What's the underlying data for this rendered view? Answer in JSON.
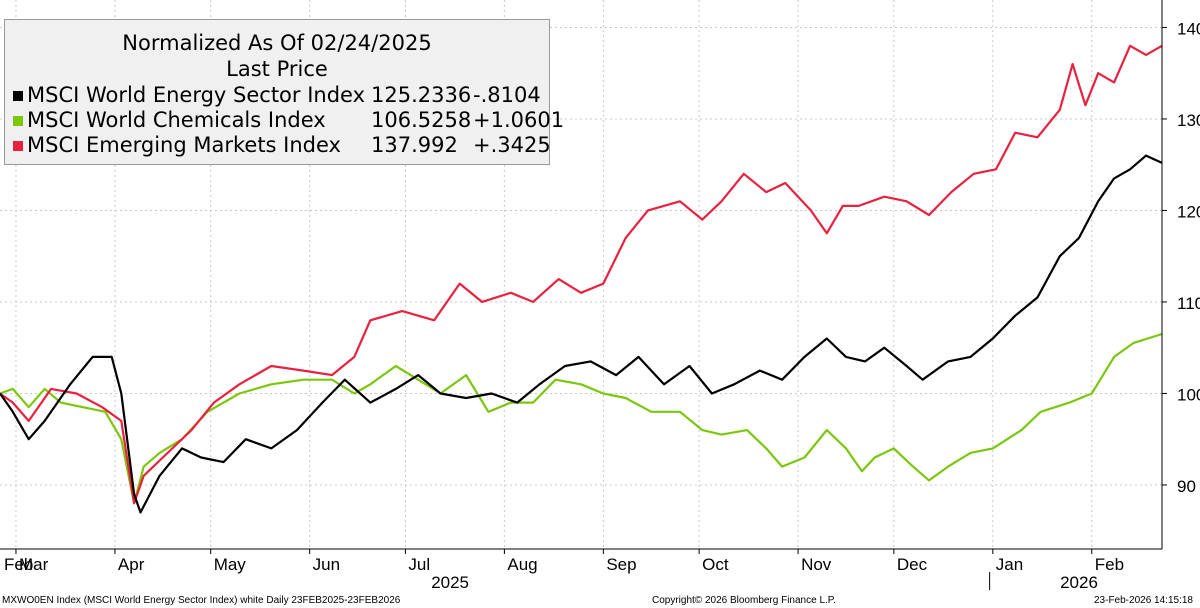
{
  "legend": {
    "header_line1": "Normalized As Of 02/24/2025",
    "header_line2": "Last Price",
    "entries": [
      {
        "name": "MSCI World Energy Sector Index",
        "last": "125.2336",
        "change": "-.8104",
        "color": "#000000"
      },
      {
        "name": "MSCI World Chemicals Index",
        "last": "106.5258",
        "change": "+1.0601",
        "color": "#7ac70c"
      },
      {
        "name": "MSCI Emerging Markets Index",
        "last": "137.992",
        "change": "+.3425",
        "color": "#e8213f"
      }
    ]
  },
  "footer": {
    "left": "MXWO0EN Index (MSCI World Energy Sector Index) white Daily 23FEB2025-23FEB2026",
    "center": "Copyright© 2026 Bloomberg Finance L.P.",
    "right": "23-Feb-2026 14:15:18"
  },
  "chart_data": {
    "type": "line",
    "ylim": [
      83,
      143
    ],
    "y_ticks": [
      90,
      100,
      110,
      120,
      130,
      140
    ],
    "x_start": "2025-02-24",
    "x_end": "2026-02-23",
    "month_ticks": [
      {
        "label": "Feb",
        "date": "2025-02-24"
      },
      {
        "label": "Mar",
        "date": "2025-03-01"
      },
      {
        "label": "Apr",
        "date": "2025-04-01"
      },
      {
        "label": "May",
        "date": "2025-05-01"
      },
      {
        "label": "Jun",
        "date": "2025-06-01"
      },
      {
        "label": "Jul",
        "date": "2025-07-01"
      },
      {
        "label": "Aug",
        "date": "2025-08-01"
      },
      {
        "label": "Sep",
        "date": "2025-09-01"
      },
      {
        "label": "Oct",
        "date": "2025-10-01"
      },
      {
        "label": "Nov",
        "date": "2025-11-01"
      },
      {
        "label": "Dec",
        "date": "2025-12-01"
      },
      {
        "label": "Jan",
        "date": "2026-01-01"
      },
      {
        "label": "Feb",
        "date": "2026-02-01"
      }
    ],
    "year_labels": [
      {
        "label": "2025",
        "date": "2025-07-15"
      },
      {
        "label": "2026",
        "date": "2026-01-28"
      }
    ],
    "year_divider_date": "2025-12-31",
    "grid": true,
    "legend_position": "top-left",
    "series": [
      {
        "name": "MSCI World Chemicals Index",
        "color": "#7ac70c",
        "points": [
          [
            "2025-02-24",
            100
          ],
          [
            "2025-02-28",
            100.5
          ],
          [
            "2025-03-05",
            98.5
          ],
          [
            "2025-03-10",
            100.5
          ],
          [
            "2025-03-15",
            99
          ],
          [
            "2025-03-22",
            98.5
          ],
          [
            "2025-03-29",
            98
          ],
          [
            "2025-04-03",
            95
          ],
          [
            "2025-04-07",
            88
          ],
          [
            "2025-04-10",
            92
          ],
          [
            "2025-04-15",
            93.5
          ],
          [
            "2025-04-22",
            95
          ],
          [
            "2025-04-30",
            98
          ],
          [
            "2025-05-10",
            100
          ],
          [
            "2025-05-20",
            101
          ],
          [
            "2025-05-30",
            101.5
          ],
          [
            "2025-06-08",
            101.5
          ],
          [
            "2025-06-15",
            100
          ],
          [
            "2025-06-20",
            101
          ],
          [
            "2025-06-28",
            103
          ],
          [
            "2025-07-05",
            101.5
          ],
          [
            "2025-07-12",
            100
          ],
          [
            "2025-07-20",
            102
          ],
          [
            "2025-07-27",
            98
          ],
          [
            "2025-08-03",
            99
          ],
          [
            "2025-08-10",
            99
          ],
          [
            "2025-08-17",
            101.5
          ],
          [
            "2025-08-25",
            101
          ],
          [
            "2025-09-01",
            100
          ],
          [
            "2025-09-08",
            99.5
          ],
          [
            "2025-09-16",
            98
          ],
          [
            "2025-09-25",
            98
          ],
          [
            "2025-10-02",
            96
          ],
          [
            "2025-10-08",
            95.5
          ],
          [
            "2025-10-16",
            96
          ],
          [
            "2025-10-22",
            94
          ],
          [
            "2025-10-27",
            92
          ],
          [
            "2025-11-03",
            93
          ],
          [
            "2025-11-10",
            96
          ],
          [
            "2025-11-16",
            94
          ],
          [
            "2025-11-21",
            91.5
          ],
          [
            "2025-11-25",
            93
          ],
          [
            "2025-12-01",
            94
          ],
          [
            "2025-12-07",
            92
          ],
          [
            "2025-12-12",
            90.5
          ],
          [
            "2025-12-18",
            92
          ],
          [
            "2025-12-25",
            93.5
          ],
          [
            "2026-01-01",
            94
          ],
          [
            "2026-01-10",
            96
          ],
          [
            "2026-01-16",
            98
          ],
          [
            "2026-01-25",
            99
          ],
          [
            "2026-02-01",
            100
          ],
          [
            "2026-02-08",
            104
          ],
          [
            "2026-02-14",
            105.5
          ],
          [
            "2026-02-23",
            106.5
          ]
        ]
      },
      {
        "name": "MSCI Emerging Markets Index",
        "color": "#e8213f",
        "points": [
          [
            "2025-02-24",
            100
          ],
          [
            "2025-02-28",
            99
          ],
          [
            "2025-03-05",
            97
          ],
          [
            "2025-03-12",
            100.5
          ],
          [
            "2025-03-20",
            100
          ],
          [
            "2025-03-28",
            98.5
          ],
          [
            "2025-04-03",
            97
          ],
          [
            "2025-04-07",
            88
          ],
          [
            "2025-04-10",
            91
          ],
          [
            "2025-04-16",
            93
          ],
          [
            "2025-04-25",
            96
          ],
          [
            "2025-05-02",
            99
          ],
          [
            "2025-05-10",
            101
          ],
          [
            "2025-05-20",
            103
          ],
          [
            "2025-05-30",
            102.5
          ],
          [
            "2025-06-08",
            102
          ],
          [
            "2025-06-15",
            104
          ],
          [
            "2025-06-20",
            108
          ],
          [
            "2025-06-30",
            109
          ],
          [
            "2025-07-10",
            108
          ],
          [
            "2025-07-18",
            112
          ],
          [
            "2025-07-25",
            110
          ],
          [
            "2025-08-03",
            111
          ],
          [
            "2025-08-10",
            110
          ],
          [
            "2025-08-18",
            112.5
          ],
          [
            "2025-08-25",
            111
          ],
          [
            "2025-09-01",
            112
          ],
          [
            "2025-09-08",
            117
          ],
          [
            "2025-09-15",
            120
          ],
          [
            "2025-09-25",
            121
          ],
          [
            "2025-10-02",
            119
          ],
          [
            "2025-10-08",
            121
          ],
          [
            "2025-10-15",
            124
          ],
          [
            "2025-10-22",
            122
          ],
          [
            "2025-10-28",
            123
          ],
          [
            "2025-11-05",
            120
          ],
          [
            "2025-11-10",
            117.5
          ],
          [
            "2025-11-15",
            120.5
          ],
          [
            "2025-11-20",
            120.5
          ],
          [
            "2025-11-28",
            121.5
          ],
          [
            "2025-12-05",
            121
          ],
          [
            "2025-12-12",
            119.5
          ],
          [
            "2025-12-19",
            122
          ],
          [
            "2025-12-26",
            124
          ],
          [
            "2026-01-02",
            124.5
          ],
          [
            "2026-01-08",
            128.5
          ],
          [
            "2026-01-15",
            128
          ],
          [
            "2026-01-22",
            131
          ],
          [
            "2026-01-26",
            136
          ],
          [
            "2026-01-30",
            131.5
          ],
          [
            "2026-02-03",
            135
          ],
          [
            "2026-02-08",
            134
          ],
          [
            "2026-02-13",
            138
          ],
          [
            "2026-02-18",
            137
          ],
          [
            "2026-02-23",
            138
          ]
        ]
      },
      {
        "name": "MSCI World Energy Sector Index",
        "color": "#000000",
        "points": [
          [
            "2025-02-24",
            100
          ],
          [
            "2025-02-28",
            98
          ],
          [
            "2025-03-05",
            95
          ],
          [
            "2025-03-10",
            97
          ],
          [
            "2025-03-18",
            101
          ],
          [
            "2025-03-25",
            104
          ],
          [
            "2025-03-31",
            104
          ],
          [
            "2025-04-03",
            100
          ],
          [
            "2025-04-07",
            89
          ],
          [
            "2025-04-09",
            87
          ],
          [
            "2025-04-15",
            91
          ],
          [
            "2025-04-22",
            94
          ],
          [
            "2025-04-28",
            93
          ],
          [
            "2025-05-05",
            92.5
          ],
          [
            "2025-05-12",
            95
          ],
          [
            "2025-05-20",
            94
          ],
          [
            "2025-05-28",
            96
          ],
          [
            "2025-06-05",
            99
          ],
          [
            "2025-06-12",
            101.5
          ],
          [
            "2025-06-20",
            99
          ],
          [
            "2025-06-28",
            100.5
          ],
          [
            "2025-07-05",
            102
          ],
          [
            "2025-07-12",
            100
          ],
          [
            "2025-07-20",
            99.5
          ],
          [
            "2025-07-28",
            100
          ],
          [
            "2025-08-05",
            99
          ],
          [
            "2025-08-12",
            101
          ],
          [
            "2025-08-20",
            103
          ],
          [
            "2025-08-28",
            103.5
          ],
          [
            "2025-09-05",
            102
          ],
          [
            "2025-09-12",
            104
          ],
          [
            "2025-09-20",
            101
          ],
          [
            "2025-09-28",
            103
          ],
          [
            "2025-10-05",
            100
          ],
          [
            "2025-10-12",
            101
          ],
          [
            "2025-10-20",
            102.5
          ],
          [
            "2025-10-27",
            101.5
          ],
          [
            "2025-11-03",
            104
          ],
          [
            "2025-11-10",
            106
          ],
          [
            "2025-11-16",
            104
          ],
          [
            "2025-11-22",
            103.5
          ],
          [
            "2025-11-28",
            105
          ],
          [
            "2025-12-05",
            103
          ],
          [
            "2025-12-10",
            101.5
          ],
          [
            "2025-12-18",
            103.5
          ],
          [
            "2025-12-25",
            104
          ],
          [
            "2026-01-01",
            106
          ],
          [
            "2026-01-08",
            108.5
          ],
          [
            "2026-01-15",
            110.5
          ],
          [
            "2026-01-22",
            115
          ],
          [
            "2026-01-28",
            117
          ],
          [
            "2026-02-03",
            121
          ],
          [
            "2026-02-08",
            123.5
          ],
          [
            "2026-02-13",
            124.5
          ],
          [
            "2026-02-18",
            126
          ],
          [
            "2026-02-23",
            125.2
          ]
        ]
      }
    ]
  }
}
